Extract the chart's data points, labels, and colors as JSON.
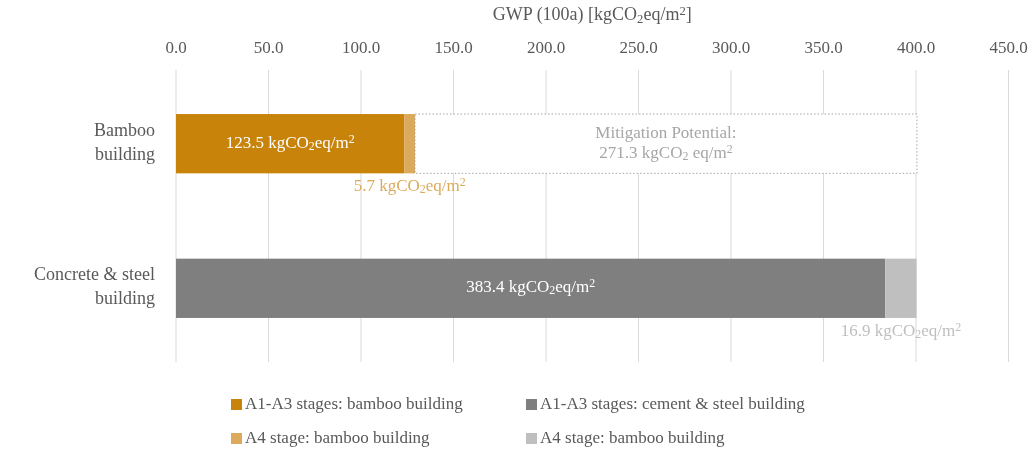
{
  "chart_data": {
    "type": "bar",
    "orientation": "horizontal",
    "stacked": true,
    "xlabel": "GWP (100a)  [kgCO$_{2}$eq/m$^{2}$]",
    "categories": [
      "Bamboo\nbuilding",
      "Concrete & steel\nbuilding"
    ],
    "series": [
      {
        "name": "A1-A3 stages: bamboo building",
        "color": "#c8830a",
        "values": [
          123.5,
          null
        ],
        "value_labels": [
          "123.5 kgCO$_{2}$eq/m$^{2}$",
          null
        ]
      },
      {
        "name": "A4 stage: bamboo building",
        "color": "#dcaa5c",
        "values": [
          5.7,
          null
        ],
        "value_labels": [
          "5.7 kgCO$_{2}$eq/m$^{2}$",
          null
        ]
      },
      {
        "color": "#ffffff",
        "line_style": "dotted",
        "values": [
          271.3,
          null
        ],
        "value_labels": [
          "Mitigation Potential:\n271.3 kgCO$_{2}$ eq/m$^{2}$",
          null
        ]
      },
      {
        "name": "A1-A3 stages: cement & steel building",
        "color": "#7f7f7f",
        "values": [
          null,
          383.4
        ],
        "value_labels": [
          null,
          "383.4 kgCO$_{2}$eq/m$^{2}$"
        ]
      },
      {
        "name": "A4 stage: bamboo building",
        "color": "#bfbfbf",
        "values": [
          null,
          16.9
        ],
        "value_labels": [
          null,
          "16.9 kgCO$_{2}$eq/m$^{2}$"
        ]
      }
    ],
    "xlim": [
      0,
      450
    ],
    "xticks": [
      {
        "value": 0,
        "label": "0.0"
      },
      {
        "value": 50,
        "label": "50.0"
      },
      {
        "value": 100,
        "label": "100.0"
      },
      {
        "value": 150,
        "label": "150.0"
      },
      {
        "value": 200,
        "label": "200.0"
      },
      {
        "value": 250,
        "label": "250.0"
      },
      {
        "value": 300,
        "label": "300.0"
      },
      {
        "value": 350,
        "label": "350.0"
      },
      {
        "value": 400,
        "label": "400.0"
      },
      {
        "value": 450,
        "label": "450.0"
      }
    ],
    "grid": "x",
    "legend": "bottom"
  }
}
